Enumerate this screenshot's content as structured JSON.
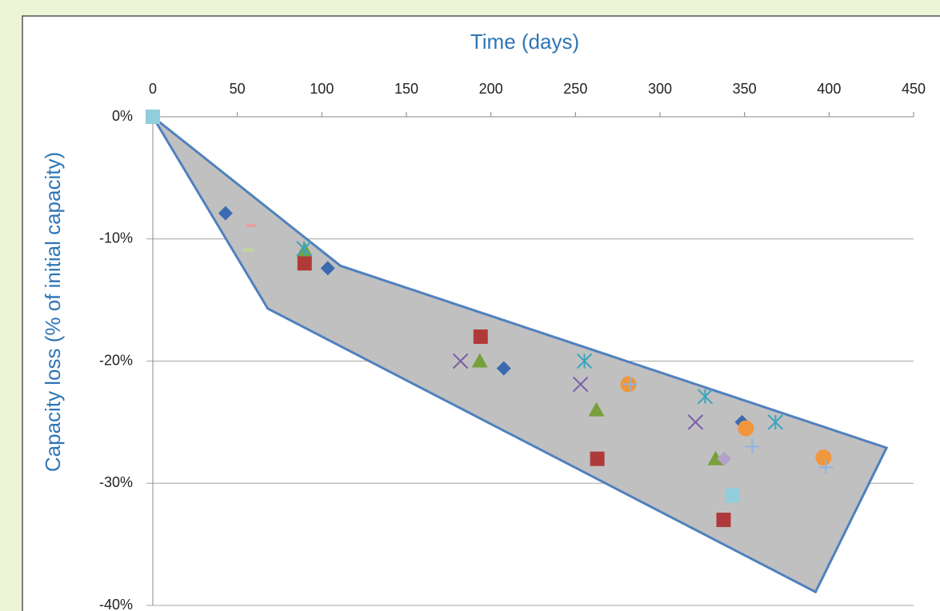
{
  "chart_data": {
    "type": "scatter",
    "title": "Time (days)",
    "y_label": "Capacity loss (% of initial capacity)",
    "xlim": [
      0,
      450
    ],
    "xticks": [
      0,
      50,
      100,
      150,
      200,
      250,
      300,
      350,
      400,
      450
    ],
    "ylim": [
      0,
      -40
    ],
    "yticks": [
      {
        "value": 0,
        "label": "0%"
      },
      {
        "value": -10,
        "label": "-10%"
      },
      {
        "value": -20,
        "label": "-20%"
      },
      {
        "value": -30,
        "label": "-30%"
      },
      {
        "value": -40,
        "label": "-40%"
      }
    ],
    "grid": true,
    "envelope": {
      "color": "#c0c0c0",
      "edge_color": "#4f81bd",
      "x": [
        0,
        111,
        434,
        392,
        68
      ],
      "values": [
        0,
        -12.2,
        -27.1,
        -38.9,
        -15.7
      ]
    },
    "series": [
      {
        "marker": "diamond",
        "color": "#3a6ab0",
        "x": [
          43,
          103.5,
          207.6,
          348.5
        ],
        "values": [
          -7.9,
          -12.4,
          -20.6,
          -25.0
        ]
      },
      {
        "marker": "square",
        "color": "#b03a3a",
        "x": [
          89.8,
          193.9,
          262.9,
          337.6
        ],
        "values": [
          -12.0,
          -18.0,
          -28.0,
          -33.0
        ]
      },
      {
        "marker": "triangle",
        "color": "#77a03c",
        "x": [
          89.8,
          193.4,
          262.4,
          332.9
        ],
        "values": [
          -10.9,
          -20.0,
          -24.0,
          -28.0
        ]
      },
      {
        "marker": "x",
        "color": "#7b5ea7",
        "x": [
          182,
          253,
          321
        ],
        "values": [
          -20.0,
          -21.9,
          -25.0
        ]
      },
      {
        "marker": "asterisk",
        "color": "#3aa5c0",
        "x": [
          89.4,
          255.3,
          326.7,
          368.3
        ],
        "values": [
          -10.8,
          -20.0,
          -22.9,
          -25.0
        ]
      },
      {
        "marker": "circle",
        "color": "#f0963c",
        "x": [
          281.3,
          350.8,
          396.7
        ],
        "values": [
          -21.9,
          -25.5,
          -27.9
        ]
      },
      {
        "marker": "plus",
        "color": "#8db3e2",
        "x": [
          282.3,
          354.6,
          398.1
        ],
        "values": [
          -21.9,
          -27.0,
          -28.7
        ]
      },
      {
        "marker": "diamond",
        "color": "#b3a2c7",
        "x": [
          338
        ],
        "values": [
          -28.0
        ]
      },
      {
        "marker": "square",
        "color": "#92cddc",
        "x": [
          0,
          342.8
        ],
        "values": [
          0,
          -31.0
        ]
      },
      {
        "marker": "dash",
        "color": "#e6a0a0",
        "x": [
          58.2
        ],
        "values": [
          -8.9
        ]
      },
      {
        "marker": "dash",
        "color": "#c3d69b",
        "x": [
          56.3
        ],
        "values": [
          -10.9
        ]
      }
    ]
  }
}
